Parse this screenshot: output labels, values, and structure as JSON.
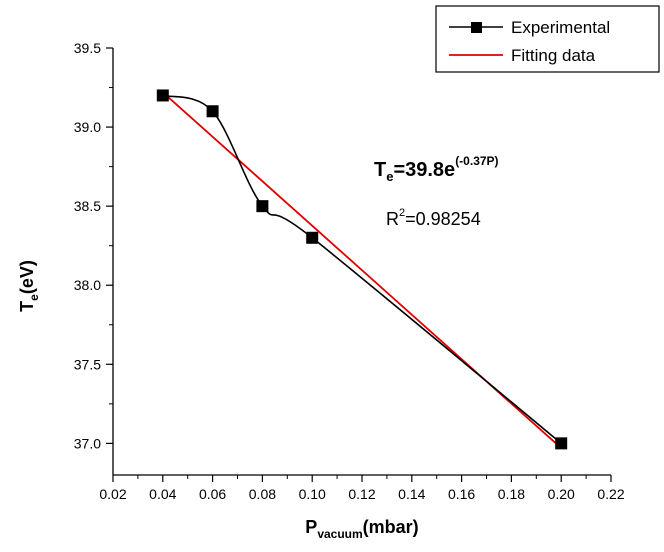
{
  "chart_data": {
    "type": "line",
    "xlabel": {
      "main": "P",
      "sub": "vacuum",
      "unit": "(mbar)"
    },
    "ylabel": {
      "main": "T",
      "sub": "e",
      "unit": "(eV)"
    },
    "xlim": [
      0.02,
      0.22
    ],
    "ylim": [
      36.8,
      39.5
    ],
    "x_ticks": [
      "0.02",
      "0.04",
      "0.06",
      "0.08",
      "0.10",
      "0.12",
      "0.14",
      "0.16",
      "0.18",
      "0.20",
      "0.22"
    ],
    "y_ticks": [
      "37.0",
      "37.5",
      "38.0",
      "38.5",
      "39.0",
      "39.5"
    ],
    "grid": false,
    "legend_position": "top-right",
    "series": [
      {
        "name": "Experimental",
        "color": "#000000",
        "marker": "square",
        "x": [
          0.04,
          0.06,
          0.08,
          0.1,
          0.2
        ],
        "y": [
          39.2,
          39.1,
          38.5,
          38.3,
          37.0
        ]
      },
      {
        "name": "Fitting data",
        "color": "#e00000",
        "marker": "none",
        "x": [
          0.04,
          0.2
        ],
        "y": [
          39.22,
          36.97
        ]
      }
    ],
    "annotations": {
      "equation": {
        "base": "T",
        "sub": "e",
        "body": "=39.8e",
        "exponent": "(-0.37P)"
      },
      "r_squared": {
        "base": "R",
        "sup": "2",
        "body": "=0.98254"
      }
    }
  }
}
